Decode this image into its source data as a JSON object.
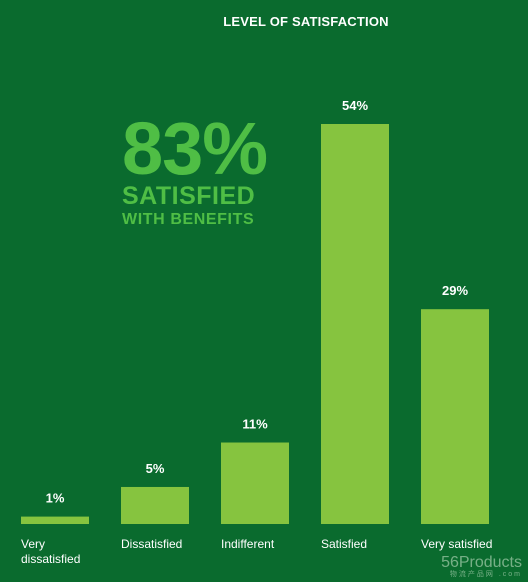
{
  "title": "LEVEL OF SATISFACTION",
  "headline": {
    "percent": "83%",
    "line1": "SATISFIED",
    "line2": "WITH BENEFITS"
  },
  "chart_data": {
    "type": "bar",
    "title": "LEVEL OF SATISFACTION",
    "categories": [
      "Very dissatisfied",
      "Dissatisfied",
      "Indifferent",
      "Satisfied",
      "Very satisfied"
    ],
    "category_lines": [
      [
        "Very",
        "dissatisfied"
      ],
      [
        "Dissatisfied"
      ],
      [
        "Indifferent"
      ],
      [
        "Satisfied"
      ],
      [
        "Very satisfied"
      ]
    ],
    "values": [
      1,
      5,
      11,
      54,
      29
    ],
    "value_labels": [
      "1%",
      "5%",
      "11%",
      "54%",
      "29%"
    ],
    "unit": "%",
    "ylim": [
      0,
      54
    ],
    "grid": false,
    "colors": {
      "background": "#0a6b2e",
      "bar": "#86c43f",
      "headline": "#4fbe45",
      "text": "#ffffff"
    }
  },
  "watermark": {
    "main": "56Products",
    "sub": "物流产品网 .com"
  }
}
